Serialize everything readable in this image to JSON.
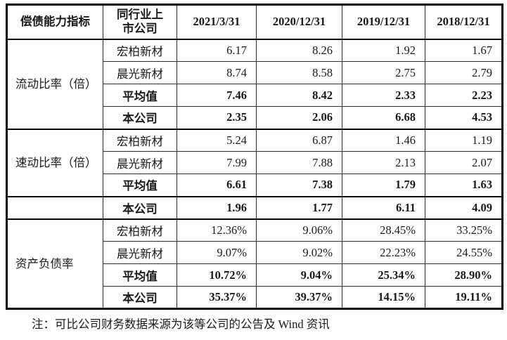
{
  "table": {
    "header": {
      "indicator_label": "偿债能力指标",
      "peer_label": "同行业上市公司",
      "periods": [
        "2021/3/31",
        "2020/12/31",
        "2019/12/31",
        "2018/12/31"
      ]
    },
    "sections": [
      {
        "indicator": "流动比率（倍）",
        "rows": [
          {
            "company": "宏柏新材",
            "emphasis": false,
            "values": [
              "6.17",
              "8.26",
              "1.92",
              "1.67"
            ]
          },
          {
            "company": "晨光新材",
            "emphasis": false,
            "values": [
              "8.74",
              "8.58",
              "2.75",
              "2.79"
            ]
          },
          {
            "company": "平均值",
            "emphasis": true,
            "values": [
              "7.46",
              "8.42",
              "2.33",
              "2.23"
            ]
          },
          {
            "company": "本公司",
            "emphasis": true,
            "values": [
              "2.35",
              "2.06",
              "6.68",
              "4.53"
            ]
          }
        ]
      },
      {
        "indicator": "速动比率（倍）",
        "rows": [
          {
            "company": "宏柏新材",
            "emphasis": false,
            "values": [
              "5.24",
              "6.87",
              "1.46",
              "1.19"
            ]
          },
          {
            "company": "晨光新材",
            "emphasis": false,
            "values": [
              "7.99",
              "7.88",
              "2.13",
              "2.07"
            ]
          },
          {
            "company": "平均值",
            "emphasis": true,
            "values": [
              "6.61",
              "7.38",
              "1.79",
              "1.63"
            ]
          }
        ]
      },
      {
        "indicator": "",
        "rows": [
          {
            "company": "本公司",
            "emphasis": true,
            "values": [
              "1.96",
              "1.77",
              "6.11",
              "4.09"
            ]
          }
        ]
      },
      {
        "indicator": "资产负债率",
        "rows": [
          {
            "company": "宏柏新材",
            "emphasis": false,
            "values": [
              "12.36%",
              "9.06%",
              "28.45%",
              "33.25%"
            ]
          },
          {
            "company": "晨光新材",
            "emphasis": false,
            "values": [
              "9.07%",
              "9.02%",
              "22.23%",
              "24.55%"
            ]
          },
          {
            "company": "平均值",
            "emphasis": true,
            "values": [
              "10.72%",
              "9.04%",
              "25.34%",
              "28.90%"
            ]
          },
          {
            "company": "本公司",
            "emphasis": true,
            "values": [
              "35.37%",
              "39.37%",
              "14.15%",
              "19.11%"
            ]
          }
        ]
      }
    ]
  },
  "footnote": "注：可比公司财务数据来源为该等公司的公告及 Wind 资讯"
}
